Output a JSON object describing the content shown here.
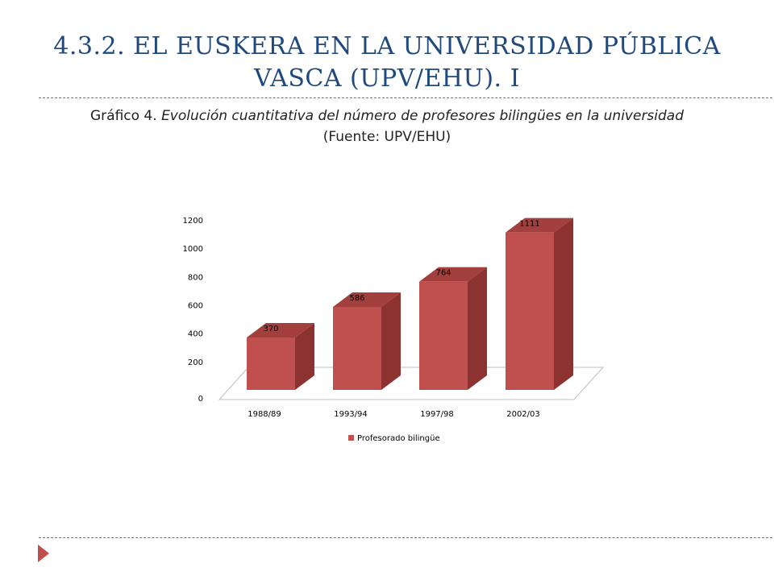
{
  "slide": {
    "title": "4.3.2. EL EUSKERA EN LA UNIVERSIDAD PÚBLICA VASCA (UPV/EHU). I",
    "caption_prefix": "Gráfico 4.",
    "caption_italic": "Evolución cuantitativa del número de profesores bilingües en la universidad",
    "caption_source": "(Fuente: UPV/EHU)"
  },
  "colors": {
    "title": "#1F497D",
    "accent": "#C0504D",
    "bar_front": "#C0504D",
    "bar_side": "#8C3230",
    "bar_top": "#A33F3C"
  },
  "chart_data": {
    "type": "bar",
    "three_d": true,
    "categories": [
      "1988/89",
      "1993/94",
      "1997/98",
      "2002/03"
    ],
    "series": [
      {
        "name": "Profesorado bilingüe",
        "values": [
          370,
          586,
          764,
          1111
        ]
      }
    ],
    "y_ticks": [
      "0",
      "200",
      "400",
      "600",
      "800",
      "1000",
      "1200"
    ],
    "data_labels": [
      "370",
      "586",
      "764",
      "1111"
    ],
    "ylim": [
      0,
      1200
    ],
    "grid": false,
    "legend": "bottom",
    "title": "",
    "xlabel": "",
    "ylabel": ""
  }
}
